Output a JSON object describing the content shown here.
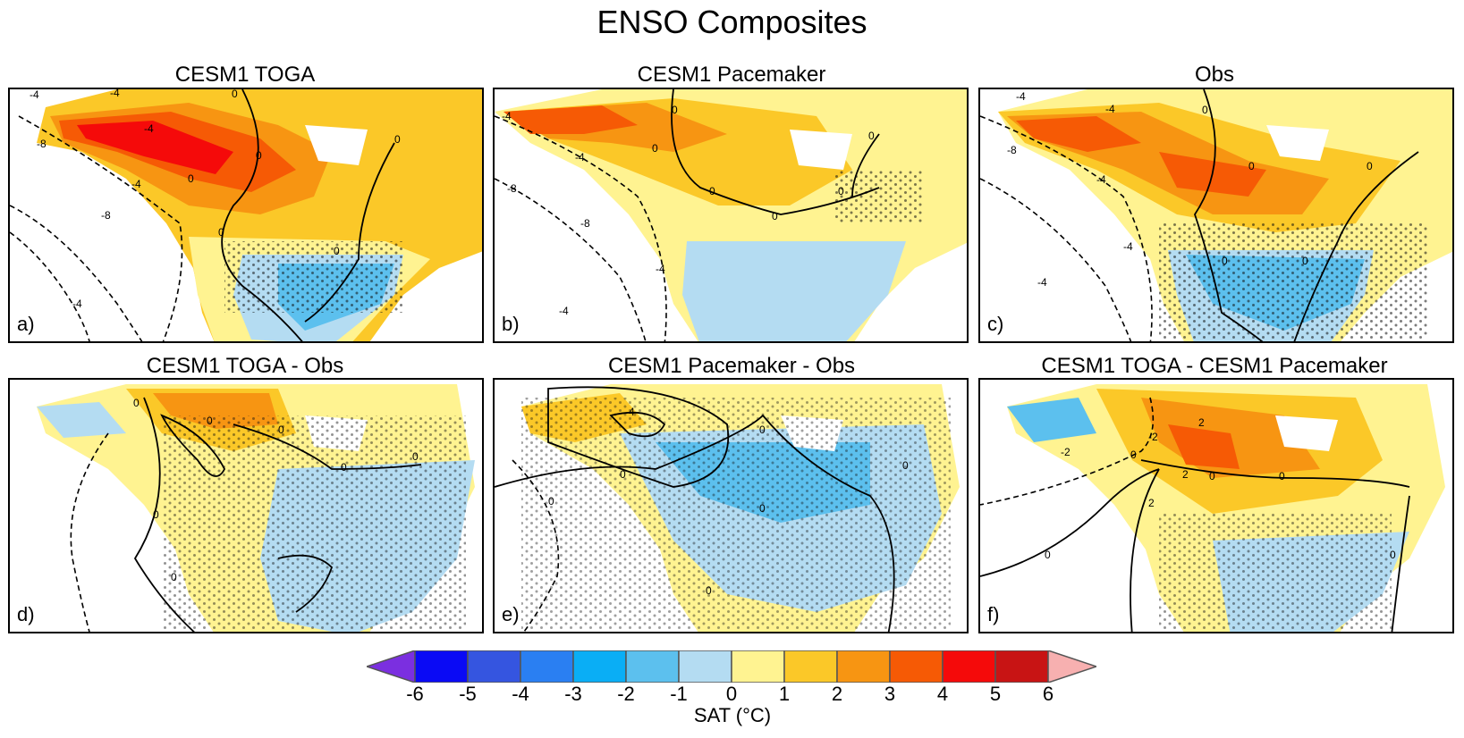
{
  "title": "ENSO Composites",
  "panels": [
    {
      "title": "CESM1 TOGA",
      "letter": "a)"
    },
    {
      "title": "CESM1 Pacemaker",
      "letter": "b)"
    },
    {
      "title": "Obs",
      "letter": "c)"
    },
    {
      "title": "CESM1 TOGA - Obs",
      "letter": "d)"
    },
    {
      "title": "CESM1 Pacemaker - Obs",
      "letter": "e)"
    },
    {
      "title": "CESM1 TOGA - CESM1 Pacemaker",
      "letter": "f)"
    }
  ],
  "contour_labels": {
    "a": [
      "-4",
      "-4",
      "-4",
      "-8",
      "-8",
      "-4",
      "-4",
      "0",
      "0",
      "0",
      "0",
      "0",
      "0"
    ],
    "b": [
      "-4",
      "-4",
      "-8",
      "-8",
      "-4",
      "-4",
      "0",
      "0",
      "0",
      "0",
      "0",
      "0"
    ],
    "c": [
      "-4",
      "-4",
      "-8",
      "-4",
      "-4",
      "-4",
      "0",
      "0",
      "0",
      "0",
      "0"
    ],
    "d": [
      "0",
      "0",
      "0",
      "0",
      "0",
      "0",
      "0"
    ],
    "e": [
      "4",
      "0",
      "0",
      "0",
      "0",
      "0",
      "0"
    ],
    "f": [
      "2",
      "-2",
      "-2",
      "2",
      "2",
      "0",
      "0",
      "0",
      "0",
      "0"
    ]
  },
  "colorbar": {
    "label": "SAT (°C)",
    "ticks": [
      "-6",
      "-5",
      "-4",
      "-3",
      "-2",
      "-1",
      "0",
      "1",
      "2",
      "3",
      "4",
      "5",
      "6"
    ],
    "colors": [
      "#7b2fe0",
      "#0a0af5",
      "#3555e0",
      "#2a7ff2",
      "#0aaef5",
      "#5cc0ee",
      "#b4dcf2",
      "#fff391",
      "#fbc828",
      "#f79512",
      "#f65a05",
      "#f50a0a",
      "#c81414",
      "#f7b0b0"
    ]
  },
  "chart_data": {
    "type": "heatmap",
    "title": "ENSO Composites",
    "variable": "SAT (°C)",
    "levels": [
      -6,
      -5,
      -4,
      -3,
      -2,
      -1,
      0,
      1,
      2,
      3,
      4,
      5,
      6
    ],
    "panels": [
      {
        "id": "a",
        "title": "CESM1 TOGA",
        "warm_anomaly_max": 5,
        "cold_anomaly_min": -2,
        "contour_levels": [
          -8,
          -4,
          0
        ]
      },
      {
        "id": "b",
        "title": "CESM1 Pacemaker",
        "warm_anomaly_max": 4,
        "cold_anomaly_min": -2,
        "contour_levels": [
          -8,
          -4,
          0
        ]
      },
      {
        "id": "c",
        "title": "Obs",
        "warm_anomaly_max": 3,
        "cold_anomaly_min": -2,
        "contour_levels": [
          -8,
          -4,
          0
        ]
      },
      {
        "id": "d",
        "title": "CESM1 TOGA - Obs",
        "warm_anomaly_max": 2,
        "cold_anomaly_min": -1,
        "contour_levels": [
          0
        ]
      },
      {
        "id": "e",
        "title": "CESM1 Pacemaker - Obs",
        "warm_anomaly_max": 2,
        "cold_anomaly_min": -2,
        "contour_levels": [
          0,
          4
        ]
      },
      {
        "id": "f",
        "title": "CESM1 TOGA - CESM1 Pacemaker",
        "warm_anomaly_max": 3,
        "cold_anomaly_min": -2,
        "contour_levels": [
          -2,
          0,
          2
        ]
      }
    ]
  }
}
